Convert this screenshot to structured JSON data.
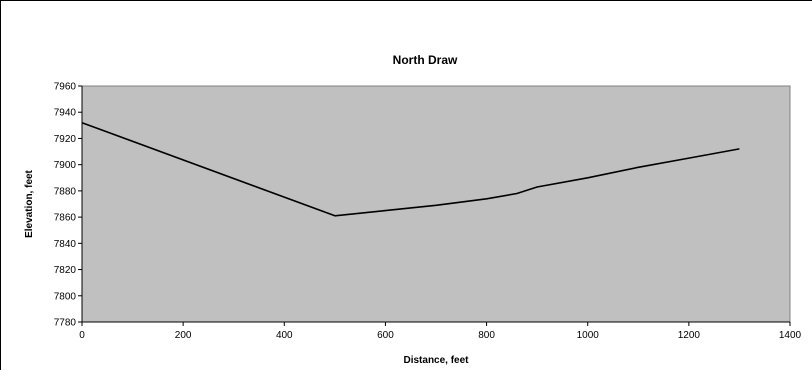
{
  "chart_data": {
    "type": "line",
    "title": "North Draw",
    "xlabel": "Distance, feet",
    "ylabel": "Elevation, feet",
    "xlim": [
      0,
      1400
    ],
    "ylim": [
      7780,
      7960
    ],
    "xticks": [
      "0",
      "200",
      "400",
      "600",
      "800",
      "1000",
      "1200",
      "1400"
    ],
    "yticks": [
      "7780",
      "7800",
      "7820",
      "7840",
      "7860",
      "7880",
      "7900",
      "7920",
      "7940",
      "7960"
    ],
    "grid": false,
    "legend": "none",
    "plot_background": "#C0C0C0",
    "series": [
      {
        "color": "#000000",
        "x": [
          0,
          500,
          600,
          700,
          800,
          860,
          900,
          1000,
          1100,
          1200,
          1300
        ],
        "y": [
          7932,
          7861,
          7865,
          7869,
          7874,
          7878,
          7883,
          7890,
          7898,
          7905,
          7912
        ]
      }
    ]
  }
}
